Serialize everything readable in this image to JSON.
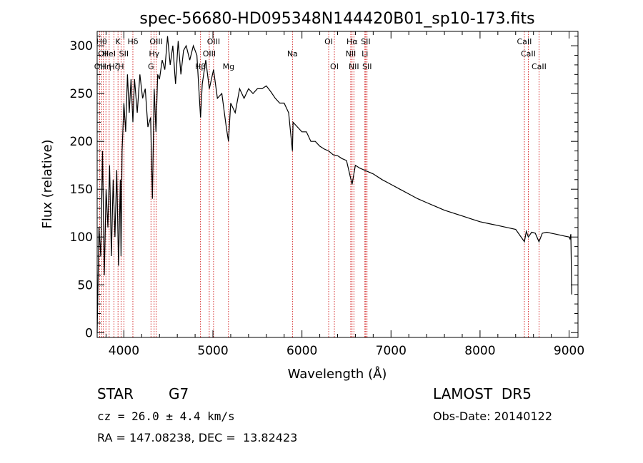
{
  "chart_data": {
    "type": "line",
    "title": "spec-56680-HD095348N144420B01_sp10-173.fits",
    "xlabel": "Wavelength (Å)",
    "ylabel": "Flux (relative)",
    "xlim": [
      3700,
      9100
    ],
    "ylim": [
      -5,
      315
    ],
    "xticks": [
      4000,
      5000,
      6000,
      7000,
      8000,
      9000
    ],
    "yticks": [
      0,
      50,
      100,
      150,
      200,
      250,
      300
    ],
    "grid": false,
    "line_color": "#000000",
    "marker_color": "#cc0000",
    "spectrum": {
      "x": [
        3700,
        3720,
        3740,
        3760,
        3780,
        3800,
        3820,
        3840,
        3860,
        3880,
        3900,
        3920,
        3940,
        3960,
        3968,
        3980,
        4000,
        4020,
        4040,
        4060,
        4080,
        4101,
        4120,
        4150,
        4180,
        4210,
        4240,
        4270,
        4300,
        4320,
        4340,
        4360,
        4380,
        4400,
        4430,
        4460,
        4490,
        4520,
        4550,
        4580,
        4610,
        4640,
        4670,
        4700,
        4740,
        4780,
        4820,
        4861,
        4880,
        4920,
        4960,
        5007,
        5050,
        5100,
        5150,
        5175,
        5200,
        5250,
        5300,
        5350,
        5400,
        5450,
        5500,
        5550,
        5600,
        5650,
        5700,
        5750,
        5800,
        5850,
        5893,
        5900,
        5950,
        6000,
        6050,
        6100,
        6150,
        6200,
        6250,
        6300,
        6350,
        6400,
        6450,
        6500,
        6563,
        6600,
        6650,
        6700,
        6750,
        6800,
        6900,
        7000,
        7100,
        7200,
        7300,
        7400,
        7500,
        7600,
        7700,
        7800,
        7900,
        8000,
        8100,
        8200,
        8300,
        8400,
        8498,
        8520,
        8542,
        8580,
        8620,
        8662,
        8700,
        8750,
        8800,
        8850,
        8900,
        8950,
        9000,
        9010,
        9020,
        9030
      ],
      "y": [
        0,
        110,
        80,
        190,
        60,
        150,
        110,
        175,
        80,
        160,
        100,
        170,
        70,
        160,
        80,
        190,
        240,
        210,
        270,
        230,
        265,
        220,
        265,
        230,
        270,
        245,
        255,
        215,
        225,
        140,
        255,
        210,
        270,
        265,
        285,
        275,
        310,
        280,
        300,
        260,
        305,
        270,
        295,
        300,
        285,
        300,
        290,
        225,
        260,
        285,
        255,
        275,
        245,
        250,
        215,
        200,
        240,
        230,
        255,
        245,
        255,
        250,
        255,
        255,
        258,
        252,
        245,
        240,
        240,
        230,
        190,
        220,
        215,
        210,
        210,
        200,
        200,
        195,
        192,
        190,
        186,
        185,
        182,
        180,
        155,
        175,
        172,
        170,
        168,
        166,
        160,
        155,
        150,
        145,
        140,
        136,
        132,
        128,
        125,
        122,
        119,
        116,
        114,
        112,
        110,
        108,
        95,
        106,
        100,
        105,
        104,
        95,
        104,
        105,
        104,
        103,
        102,
        101,
        100,
        98,
        103,
        40
      ]
    },
    "lines": [
      {
        "wave": 3727,
        "label": "OII",
        "row": 3
      },
      {
        "wave": 3750,
        "label": "Hθ",
        "row": 1
      },
      {
        "wave": 3770,
        "label": "OII",
        "row": 2
      },
      {
        "wave": 3798,
        "label": "Hη",
        "row": 3
      },
      {
        "wave": 3835,
        "label": "HeI",
        "row": 2
      },
      {
        "wave": 3889,
        "label": "Hζ",
        "row": 3
      },
      {
        "wave": 3934,
        "label": "K",
        "row": 1
      },
      {
        "wave": 3968,
        "label": "H",
        "row": 3
      },
      {
        "wave": 4000,
        "label": "SII",
        "row": 2
      },
      {
        "wave": 4101,
        "label": "Hδ",
        "row": 1
      },
      {
        "wave": 4304,
        "label": "G",
        "row": 3
      },
      {
        "wave": 4340,
        "label": "Hγ",
        "row": 2
      },
      {
        "wave": 4363,
        "label": "OIII",
        "row": 1
      },
      {
        "wave": 4861,
        "label": "Hβ",
        "row": 3
      },
      {
        "wave": 4959,
        "label": "OIII",
        "row": 2
      },
      {
        "wave": 5007,
        "label": "OIII",
        "row": 1
      },
      {
        "wave": 5175,
        "label": "Mg",
        "row": 3
      },
      {
        "wave": 5893,
        "label": "Na",
        "row": 2
      },
      {
        "wave": 6300,
        "label": "OI",
        "row": 1
      },
      {
        "wave": 6364,
        "label": "OI",
        "row": 3
      },
      {
        "wave": 6548,
        "label": "NII",
        "row": 2
      },
      {
        "wave": 6563,
        "label": "Hα",
        "row": 1
      },
      {
        "wave": 6583,
        "label": "NII",
        "row": 3
      },
      {
        "wave": 6707,
        "label": "Li",
        "row": 2
      },
      {
        "wave": 6716,
        "label": "SII",
        "row": 1
      },
      {
        "wave": 6731,
        "label": "SII",
        "row": 3
      },
      {
        "wave": 8498,
        "label": "CaII",
        "row": 1
      },
      {
        "wave": 8542,
        "label": "CaII",
        "row": 2
      },
      {
        "wave": 8662,
        "label": "CaII",
        "row": 3
      }
    ]
  },
  "info": {
    "object_type": "STAR",
    "subclass": "G7",
    "survey": "LAMOST  DR5",
    "cz": "cz = 26.0 ± 4.4 km/s",
    "obs_date": "Obs-Date: 20140122",
    "coords": "RA = 147.08238, DEC =  13.82423"
  }
}
